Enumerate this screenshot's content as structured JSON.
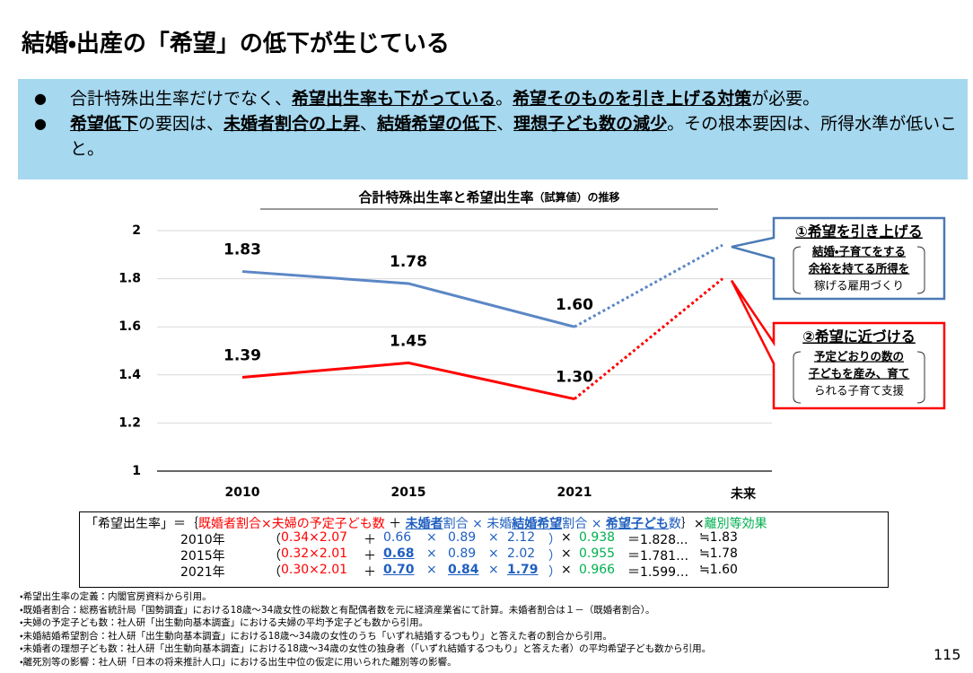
{
  "title": "結婚・出産の「希望」の低下が生じている",
  "bullets": [
    [
      {
        "text": "合計特殊出生率だけでなく、",
        "em": false
      },
      {
        "text": "希望出生率も下がっている",
        "em": true
      },
      {
        "text": "。",
        "em": false
      },
      {
        "text": "希望そのものを引き上げる対策",
        "em": true
      },
      {
        "text": "が必要。",
        "em": false
      }
    ],
    [
      {
        "text": "希望低下",
        "em": true
      },
      {
        "text": "の要因は、",
        "em": false
      },
      {
        "text": "未婚者割合の上昇",
        "em": true
      },
      {
        "text": "、",
        "em": false
      },
      {
        "text": "結婚希望の低下",
        "em": true
      },
      {
        "text": "、",
        "em": false
      },
      {
        "text": "理想子ども数の減少",
        "em": true
      },
      {
        "text": "。その根本要因は、所得水準が低いこと。",
        "em": false
      }
    ]
  ],
  "chart_data": {
    "type": "line",
    "title": "合計特殊出生率と希望出生率",
    "title_note": "（試算値）の推移",
    "categories": [
      "2010",
      "2015",
      "2021",
      "未来"
    ],
    "series": [
      {
        "color": "#5b87c5",
        "values": [
          1.83,
          1.78,
          1.6,
          1.94
        ],
        "value_labels": [
          "1.83",
          "1.78",
          "1.60",
          null
        ]
      },
      {
        "color": "#ff0000",
        "values": [
          1.39,
          1.45,
          1.3,
          1.8
        ],
        "value_labels": [
          "1.39",
          "1.45",
          "1.30",
          null
        ]
      }
    ],
    "projected_from": 2,
    "ylim": [
      1,
      2
    ],
    "yticks": [
      1,
      1.2,
      1.4,
      1.6,
      1.8,
      2
    ],
    "grid": true
  },
  "callouts": [
    {
      "title": "①希望を引き上げる",
      "lines": [
        "結婚・子育てをする",
        "余裕を持てる所得を",
        "稼げる雇用づくり"
      ],
      "color": "#4a7ab5",
      "series": 0
    },
    {
      "title": "②希望に近づける",
      "lines": [
        "予定どおりの数の",
        "子どもを産み、育て",
        "られる子育て支援"
      ],
      "color": "#ff0000",
      "series": 1
    }
  ],
  "formula": {
    "head": [
      {
        "text": "「希望出生率」＝｛",
        "color": "#000000",
        "em": false
      },
      {
        "text": "既婚者割合×夫婦の予定子ども数",
        "color": "#ff0000",
        "em": false
      },
      {
        "text": " ＋ ",
        "color": "#000000",
        "em": false
      },
      {
        "text": "未婚者",
        "color": "#1f5fbf",
        "em": true
      },
      {
        "text": "割合 × 未婚",
        "color": "#1f5fbf",
        "em": false
      },
      {
        "text": "結婚希望",
        "color": "#1f5fbf",
        "em": true
      },
      {
        "text": "割合 × ",
        "color": "#1f5fbf",
        "em": false
      },
      {
        "text": "希望子ども",
        "color": "#1f5fbf",
        "em": true
      },
      {
        "text": "数",
        "color": "#1f5fbf",
        "em": false
      },
      {
        "text": "｝×",
        "color": "#000000",
        "em": false
      },
      {
        "text": "離別等効果",
        "color": "#00b050",
        "em": false
      }
    ],
    "cell_colors": [
      "#000000",
      "#000000",
      "#ff0000",
      "#000000",
      "#1f5fbf",
      "#1f5fbf",
      "#1f5fbf",
      "#1f5fbf",
      "#1f5fbf",
      "#1f5fbf",
      "#000000",
      "#00b050",
      "#000000",
      "#000000"
    ],
    "rows": [
      {
        "cells": [
          "2010年",
          "（",
          "0.34×2.07",
          "＋",
          "0.66",
          "×",
          "0.89",
          "×",
          "2.12",
          "）",
          "×",
          "0.938",
          "＝1.828...",
          "≒1.83"
        ],
        "em": []
      },
      {
        "cells": [
          "2015年",
          "（",
          "0.32×2.01",
          "＋",
          "0.68",
          "×",
          "0.89",
          "×",
          "2.02",
          "）",
          "×",
          "0.955",
          "＝1.781…",
          "≒1.78"
        ],
        "em": [
          4
        ]
      },
      {
        "cells": [
          "2021年",
          "（",
          "0.30×2.01",
          "＋",
          "0.70",
          "×",
          "0.84",
          "×",
          "1.79",
          "）",
          "×",
          "0.966",
          "＝1.599…",
          "≒1.60"
        ],
        "em": [
          4,
          6,
          8
        ]
      }
    ]
  },
  "notes": [
    "・希望出生率の定義：内閣官房資料から引用。",
    "・既婚者割合：総務省統計局「国勢調査」における18歳～34歳女性の総数と有配偶者数を元に経済産業省にて計算。未婚者割合は１－（既婚者割合）。",
    "・夫婦の予定子ども数：社人研「出生動向基本調査」における夫婦の平均予定子ども数から引用。",
    "・未婚結婚希望割合：社人研「出生動向基本調査」における18歳～34歳の女性のうち「いずれ結婚するつもり」と答えた者の割合から引用。",
    "・未婚者の理想子ども数：社人研「出生動向基本調査」における18歳～34歳の女性の独身者（「いずれ結婚するつもり」と答えた者）の平均希望子ども数から引用。",
    "・離死別等の影響：社人研「日本の将来推計人口」における出生中位の仮定に用いられた離別等の影響。"
  ],
  "page_number": "115"
}
